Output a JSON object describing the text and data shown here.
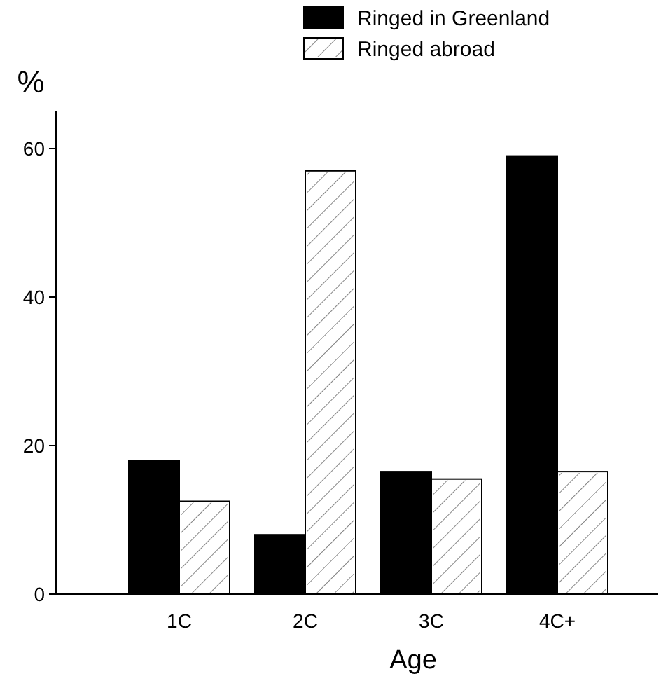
{
  "chart_data": {
    "type": "bar",
    "xlabel": "Age",
    "ylabel": "%",
    "categories": [
      "1C",
      "2C",
      "3C",
      "4C+"
    ],
    "series": [
      {
        "name": "Ringed in Greenland",
        "color": "#000000",
        "values": [
          18,
          8,
          16.5,
          59
        ]
      },
      {
        "name": "Ringed abroad",
        "color": "#ffffff",
        "values": [
          12.5,
          57,
          15.5,
          16.5
        ]
      }
    ],
    "ylim": [
      0,
      65
    ],
    "yticks": [
      0,
      20,
      40,
      60
    ],
    "grid": false,
    "legend": "top"
  }
}
